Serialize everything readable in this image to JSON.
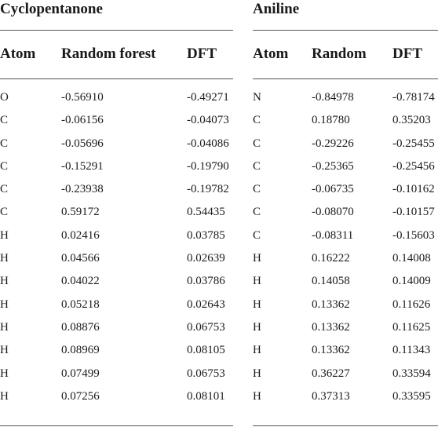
{
  "cyclopentanone": {
    "title": "Cyclopentanone",
    "headers": [
      "Atom",
      "Random forest",
      "DFT"
    ],
    "rows": [
      [
        "O",
        "-0.56910",
        "-0.49271"
      ],
      [
        "C",
        "-0.06156",
        "-0.04073"
      ],
      [
        "C",
        "-0.05696",
        "-0.04086"
      ],
      [
        "C",
        "-0.15291",
        "-0.19790"
      ],
      [
        "C",
        "-0.23938",
        "-0.19782"
      ],
      [
        "C",
        "0.59172",
        "0.54435"
      ],
      [
        "H",
        "0.02416",
        "0.03785"
      ],
      [
        "H",
        "0.04566",
        "0.02639"
      ],
      [
        "H",
        "0.04022",
        "0.03786"
      ],
      [
        "H",
        "0.05218",
        "0.02643"
      ],
      [
        "H",
        "0.08876",
        "0.06753"
      ],
      [
        "H",
        "0.08969",
        "0.08105"
      ],
      [
        "H",
        "0.07499",
        "0.06753"
      ],
      [
        "H",
        "0.07256",
        "0.08101"
      ]
    ]
  },
  "aniline": {
    "title": "Aniline",
    "headers": [
      "Atom",
      "Random",
      "DFT"
    ],
    "rows": [
      [
        "N",
        "-0.84978",
        "-0.78174"
      ],
      [
        "C",
        "0.18780",
        "0.35203"
      ],
      [
        "C",
        "-0.29226",
        "-0.25455"
      ],
      [
        "C",
        "-0.25365",
        "-0.25456"
      ],
      [
        "C",
        "-0.06735",
        "-0.10162"
      ],
      [
        "C",
        "-0.08070",
        "-0.10157"
      ],
      [
        "C",
        "-0.08311",
        "-0.15603"
      ],
      [
        "H",
        "0.16222",
        "0.14008"
      ],
      [
        "H",
        "0.14058",
        "0.14009"
      ],
      [
        "H",
        "0.13362",
        "0.11626"
      ],
      [
        "H",
        "0.13362",
        "0.11625"
      ],
      [
        "H",
        "0.13362",
        "0.11343"
      ],
      [
        "H",
        "0.36227",
        "0.33594"
      ],
      [
        "H",
        "0.37313",
        "0.33595"
      ]
    ]
  }
}
